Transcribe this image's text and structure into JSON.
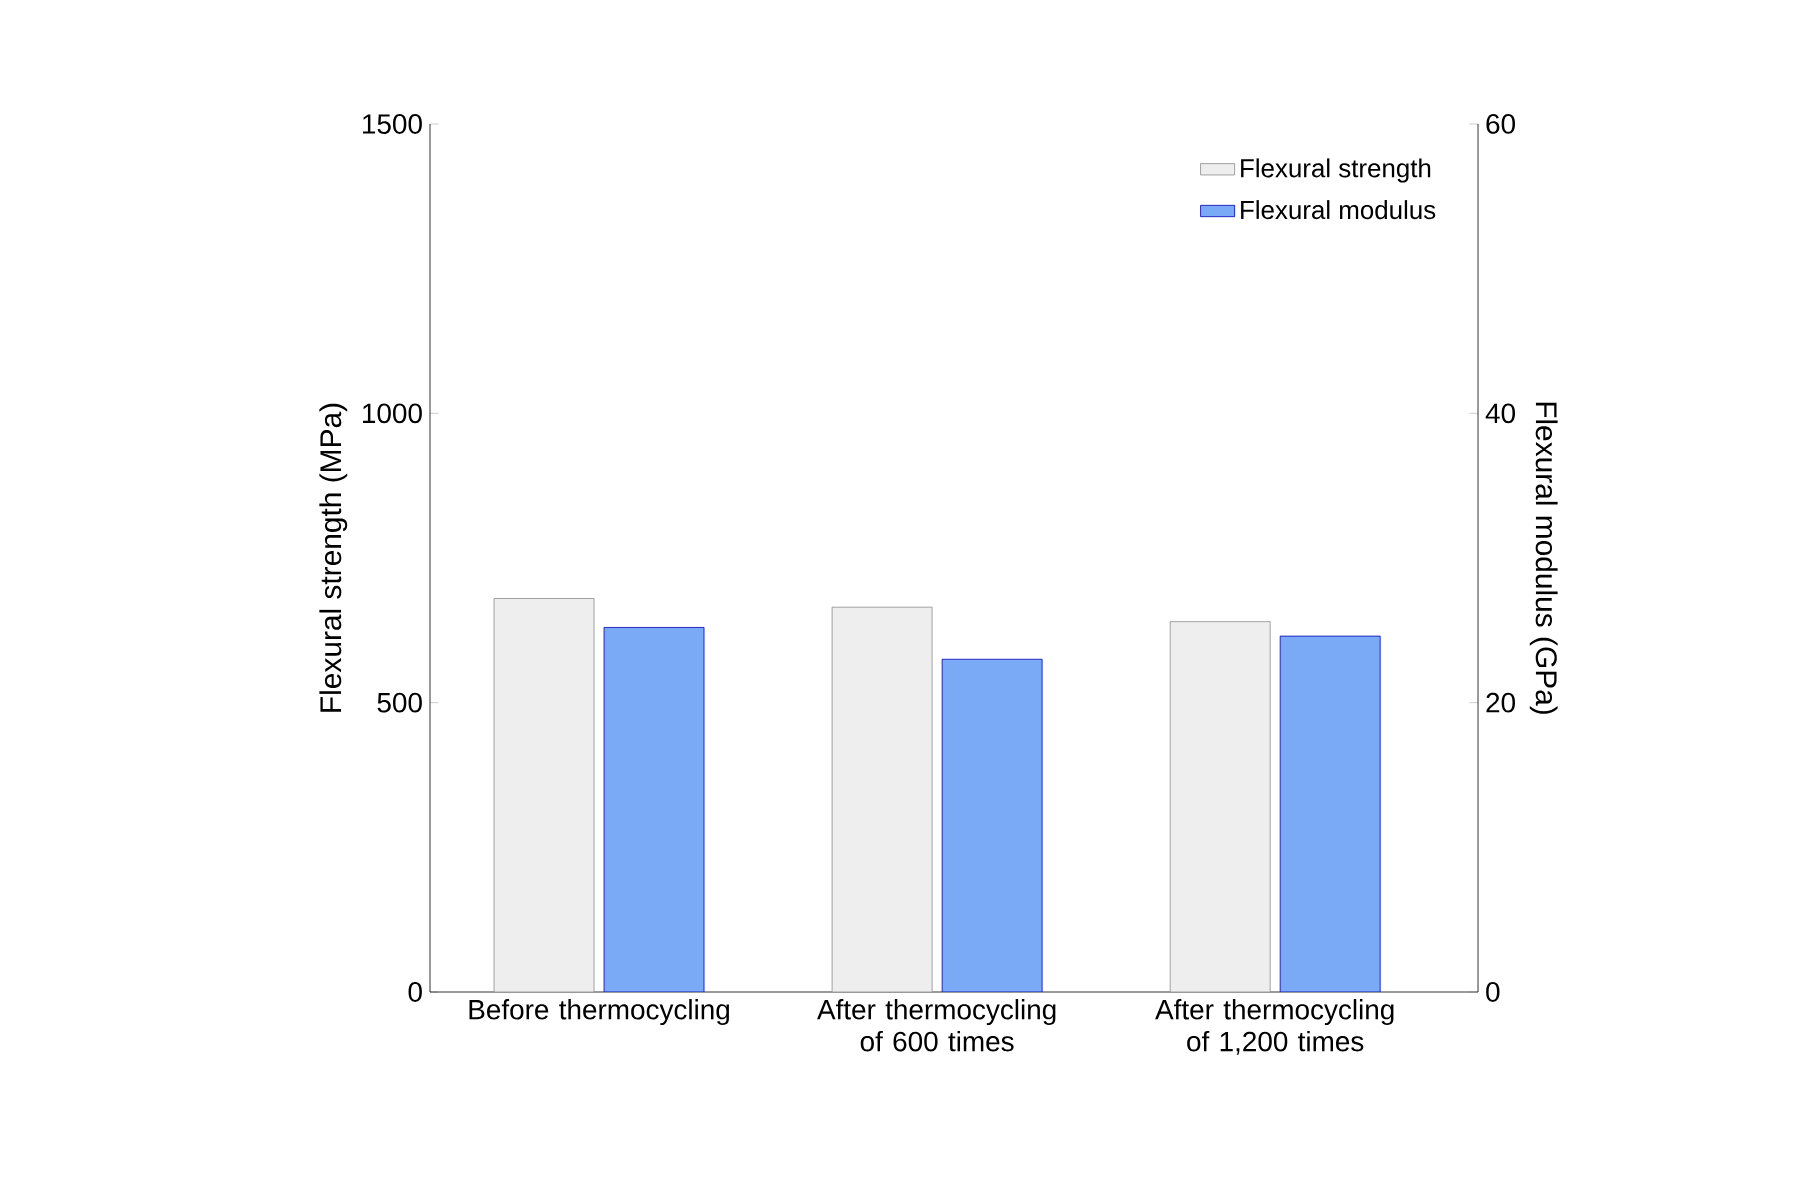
{
  "chart_data": {
    "type": "bar",
    "categories": [
      "Before thermocycling",
      "After thermocycling of 600 times",
      "After thermocycling of 1,200 times"
    ],
    "ylabel": "Flexural strength (MPa)",
    "y2label": "Flexural modulus (GPa)",
    "ylim": [
      0,
      1500
    ],
    "yticks": [
      0,
      500,
      1000,
      1500
    ],
    "y2lim": [
      0,
      60
    ],
    "y2ticks": [
      0,
      20,
      40,
      60
    ],
    "legend": "top right",
    "grid": false,
    "series": [
      {
        "name": "Flexural strength",
        "color": "#eeeeee",
        "values": [
          680,
          665,
          640
        ]
      },
      {
        "name": "Flexural modulus",
        "color": "#7aaaf5",
        "axis": "y2",
        "values": [
          25.2,
          23.0,
          24.6
        ]
      }
    ]
  }
}
